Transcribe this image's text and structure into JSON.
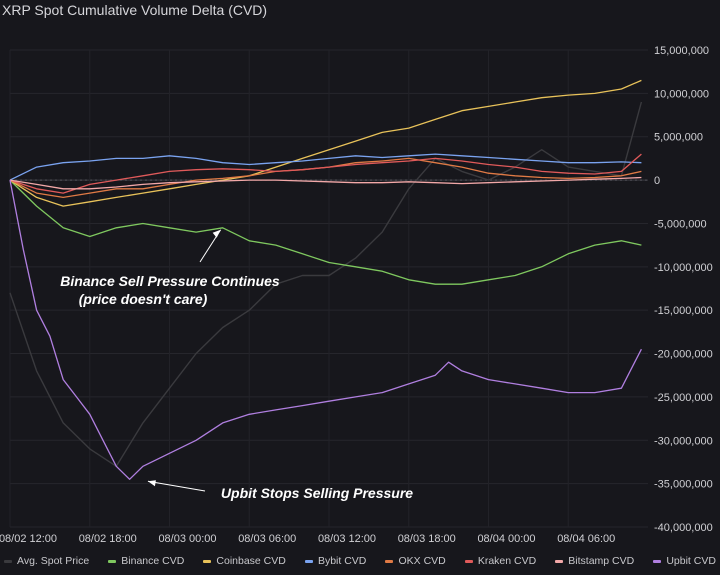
{
  "title": "XRP Spot Cumulative Volume Delta (CVD)",
  "chart_data": {
    "type": "line",
    "title": "XRP Spot Cumulative Volume Delta (CVD)",
    "y_ticks": [
      "15,000,000",
      "10,000,000",
      "5,000,000",
      "0",
      "-5,000,000",
      "-10,000,000",
      "-15,000,000",
      "-20,000,000",
      "-25,000,000",
      "-30,000,000",
      "-35,000,000",
      "-40,000,000"
    ],
    "y_tick_values": [
      15000000,
      10000000,
      5000000,
      0,
      -5000000,
      -10000000,
      -15000000,
      -20000000,
      -25000000,
      -30000000,
      -35000000,
      -40000000
    ],
    "ylim": [
      -40000000,
      15000000
    ],
    "x_ticks": [
      "08/02 12:00",
      "08/02 18:00",
      "08/03 00:00",
      "08/03 06:00",
      "08/03 12:00",
      "08/03 18:00",
      "08/04 00:00",
      "08/04 06:00"
    ],
    "x_tick_hours": [
      0,
      6,
      12,
      18,
      24,
      30,
      36,
      42
    ],
    "xlim_hours": [
      0,
      48
    ],
    "grid": true,
    "legend_position": "bottom",
    "series": [
      {
        "name": "Avg. Spot Price",
        "color": "#3a3a3e",
        "x": [
          0,
          2,
          4,
          6,
          8,
          10,
          12,
          14,
          16,
          18,
          20,
          22,
          24,
          26,
          28,
          30,
          32,
          34,
          36,
          38,
          40,
          42,
          44,
          46,
          47.5
        ],
        "values": [
          -13000000,
          -22000000,
          -28000000,
          -31000000,
          -33000000,
          -28000000,
          -24000000,
          -20000000,
          -17000000,
          -15000000,
          -12000000,
          -11000000,
          -11000000,
          -9000000,
          -6000000,
          -1000000,
          2500000,
          1000000,
          0,
          1500000,
          3500000,
          1500000,
          1000000,
          500000,
          9000000
        ]
      },
      {
        "name": "Binance CVD",
        "color": "#7fc85f",
        "x": [
          0,
          2,
          4,
          6,
          8,
          10,
          12,
          14,
          16,
          18,
          20,
          22,
          24,
          26,
          28,
          30,
          32,
          34,
          36,
          38,
          40,
          42,
          44,
          46,
          47.5
        ],
        "values": [
          0,
          -3000000,
          -5500000,
          -6500000,
          -5500000,
          -5000000,
          -5500000,
          -6000000,
          -5500000,
          -7000000,
          -7500000,
          -8500000,
          -9500000,
          -10000000,
          -10500000,
          -11500000,
          -12000000,
          -12000000,
          -11500000,
          -11000000,
          -10000000,
          -8500000,
          -7500000,
          -7000000,
          -7500000
        ]
      },
      {
        "name": "Coinbase CVD",
        "color": "#e8c25a",
        "x": [
          0,
          2,
          4,
          6,
          8,
          10,
          12,
          14,
          16,
          18,
          20,
          22,
          24,
          26,
          28,
          30,
          32,
          34,
          36,
          38,
          40,
          42,
          44,
          46,
          47.5
        ],
        "values": [
          0,
          -2000000,
          -3000000,
          -2500000,
          -2000000,
          -1500000,
          -1000000,
          -500000,
          0,
          500000,
          1500000,
          2500000,
          3500000,
          4500000,
          5500000,
          6000000,
          7000000,
          8000000,
          8500000,
          9000000,
          9500000,
          9800000,
          10000000,
          10500000,
          11500000
        ]
      },
      {
        "name": "Bybit CVD",
        "color": "#7aa3f0",
        "x": [
          0,
          2,
          4,
          6,
          8,
          10,
          12,
          14,
          16,
          18,
          20,
          22,
          24,
          26,
          28,
          30,
          32,
          34,
          36,
          38,
          40,
          42,
          44,
          46,
          47.5
        ],
        "values": [
          0,
          1500000,
          2000000,
          2200000,
          2500000,
          2500000,
          2800000,
          2500000,
          2000000,
          1800000,
          2000000,
          2200000,
          2500000,
          2800000,
          2600000,
          2800000,
          3000000,
          2800000,
          2600000,
          2400000,
          2200000,
          2000000,
          2000000,
          2100000,
          2000000
        ]
      },
      {
        "name": "OKX CVD",
        "color": "#e07a45",
        "x": [
          0,
          2,
          4,
          6,
          8,
          10,
          12,
          14,
          16,
          18,
          20,
          22,
          24,
          26,
          28,
          30,
          32,
          34,
          36,
          38,
          40,
          42,
          44,
          46,
          47.5
        ],
        "values": [
          0,
          -1500000,
          -2000000,
          -1500000,
          -1000000,
          -1000000,
          -500000,
          0,
          200000,
          500000,
          1000000,
          1200000,
          1500000,
          2000000,
          2200000,
          2500000,
          2000000,
          1500000,
          800000,
          500000,
          300000,
          200000,
          300000,
          500000,
          1000000
        ]
      },
      {
        "name": "Kraken CVD",
        "color": "#e05a5a",
        "x": [
          0,
          2,
          4,
          6,
          8,
          10,
          12,
          14,
          16,
          18,
          20,
          22,
          24,
          26,
          28,
          30,
          32,
          34,
          36,
          38,
          40,
          42,
          44,
          46,
          47.5
        ],
        "values": [
          0,
          -1000000,
          -1500000,
          -500000,
          0,
          500000,
          1000000,
          1200000,
          1300000,
          1200000,
          1000000,
          1200000,
          1500000,
          1800000,
          2000000,
          2200000,
          2500000,
          2200000,
          1800000,
          1500000,
          1000000,
          800000,
          700000,
          1000000,
          3000000
        ]
      },
      {
        "name": "Bitstamp CVD",
        "color": "#f2a8a8",
        "x": [
          0,
          2,
          4,
          6,
          8,
          10,
          12,
          14,
          16,
          18,
          20,
          22,
          24,
          26,
          28,
          30,
          32,
          34,
          36,
          38,
          40,
          42,
          44,
          46,
          47.5
        ],
        "values": [
          0,
          -500000,
          -1000000,
          -1000000,
          -800000,
          -500000,
          -300000,
          -200000,
          -100000,
          0,
          0,
          -100000,
          -200000,
          -300000,
          -300000,
          -200000,
          -300000,
          -400000,
          -300000,
          -200000,
          -100000,
          0,
          100000,
          200000,
          300000
        ]
      },
      {
        "name": "Upbit CVD",
        "color": "#b07fe0",
        "x": [
          0,
          1,
          2,
          3,
          4,
          5,
          6,
          7,
          8,
          9,
          10,
          12,
          14,
          16,
          18,
          20,
          22,
          24,
          26,
          28,
          30,
          32,
          33,
          34,
          36,
          38,
          40,
          42,
          44,
          46,
          47,
          47.5
        ],
        "values": [
          0,
          -8000000,
          -15000000,
          -18000000,
          -23000000,
          -25000000,
          -27000000,
          -30000000,
          -33000000,
          -34500000,
          -33000000,
          -31500000,
          -30000000,
          -28000000,
          -27000000,
          -26500000,
          -26000000,
          -25500000,
          -25000000,
          -24500000,
          -23500000,
          -22500000,
          -21000000,
          -22000000,
          -23000000,
          -23500000,
          -24000000,
          -24500000,
          -24500000,
          -24000000,
          -21000000,
          -19500000
        ]
      }
    ],
    "annotations": [
      {
        "text": "Binance Sell Pressure Continues",
        "text2": "(price doesn't care)",
        "x": 16,
        "y": -5500000
      },
      {
        "text": "Upbit Stops Selling Pressure",
        "x": 10,
        "y": -34500000
      }
    ]
  }
}
